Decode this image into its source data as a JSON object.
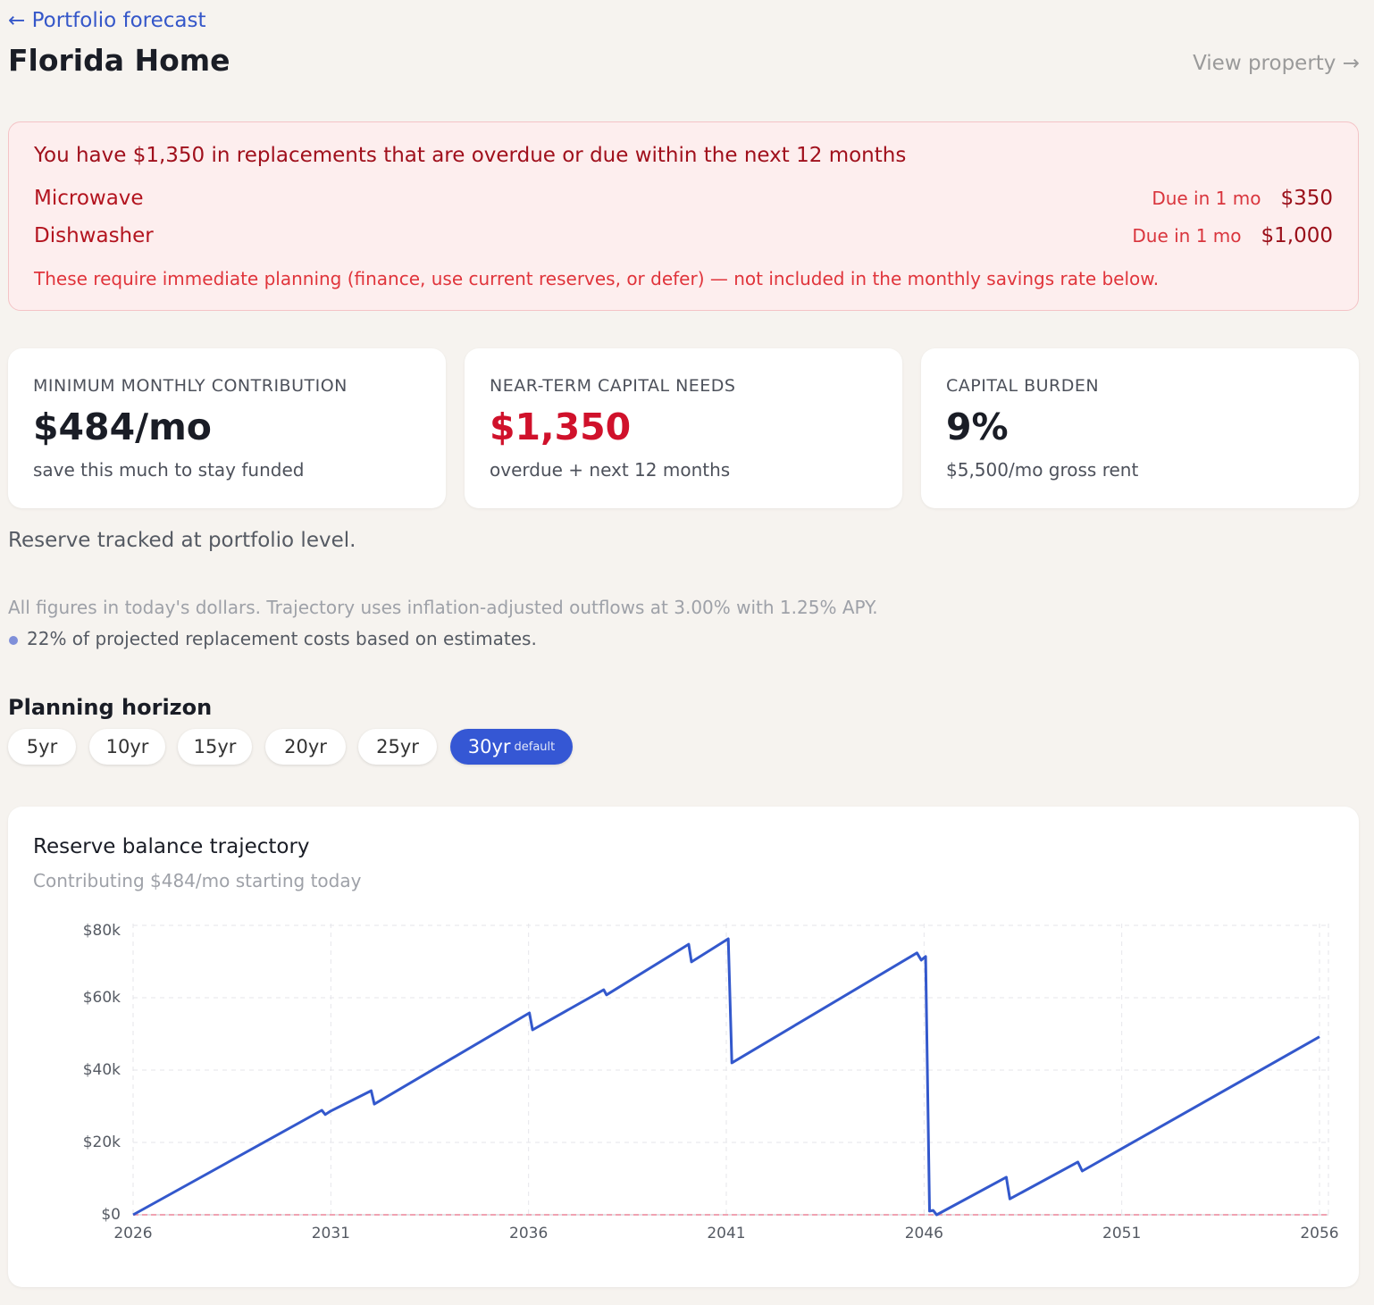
{
  "header": {
    "back_link": "← Portfolio forecast",
    "title": "Florida Home",
    "view_link": "View property →"
  },
  "alert": {
    "title": "You have $1,350 in replacements that are overdue or due within the next 12 months",
    "items": [
      {
        "name": "Microwave",
        "due": "Due in 1 mo",
        "amount": "$350"
      },
      {
        "name": "Dishwasher",
        "due": "Due in 1 mo",
        "amount": "$1,000"
      }
    ],
    "note": "These require immediate planning (finance, use current reserves, or defer) — not included in the monthly savings rate below."
  },
  "cards": [
    {
      "label": "MINIMUM MONTHLY CONTRIBUTION",
      "value": "$484/mo",
      "sub": "save this much to stay funded",
      "color": "#1a1d26"
    },
    {
      "label": "NEAR-TERM CAPITAL NEEDS",
      "value": "$1,350",
      "sub": "overdue + next 12 months",
      "color": "#d0112b"
    },
    {
      "label": "CAPITAL BURDEN",
      "value": "9%",
      "sub": "$5,500/mo gross rent",
      "color": "#1a1d26"
    }
  ],
  "reserve_note": "Reserve tracked at portfolio level.",
  "assumptions": "All figures in today's dollars. Trajectory uses inflation-adjusted outflows at 3.00% with 1.25% APY.",
  "estimate_note": "22% of projected replacement costs based on estimates.",
  "horizon": {
    "label": "Planning horizon",
    "options": [
      "5yr",
      "10yr",
      "15yr",
      "20yr",
      "25yr",
      "30yr"
    ],
    "selected": 5,
    "default_tag": "default"
  },
  "chart_data": {
    "type": "line",
    "title": "Reserve balance trajectory",
    "subtitle": "Contributing $484/mo starting today",
    "x": [
      2026,
      2030.77,
      2030.86,
      2031.0,
      2032.02,
      2032.1,
      2036.02,
      2036.1,
      2037.9,
      2037.97,
      2040.05,
      2040.12,
      2041.05,
      2041.14,
      2045.82,
      2045.93,
      2046.04,
      2046.14,
      2046.23,
      2046.32,
      2048.08,
      2048.17,
      2049.89,
      2050.0,
      2056.0
    ],
    "values": [
      0,
      28900,
      27700,
      28700,
      34300,
      30600,
      55800,
      51100,
      62200,
      60800,
      74800,
      69900,
      76300,
      42000,
      72400,
      70400,
      71400,
      1000,
      1200,
      0,
      10400,
      4400,
      14600,
      12100,
      49200
    ],
    "color": "#3358cc",
    "xlim": [
      2026,
      2056
    ],
    "xticks": [
      2026,
      2031,
      2036,
      2041,
      2046,
      2051,
      2056
    ],
    "ylim": [
      0,
      80000
    ],
    "yticks": [
      {
        "value": 0,
        "label": "$0"
      },
      {
        "value": 20000,
        "label": "$20k"
      },
      {
        "value": 40000,
        "label": "$40k"
      },
      {
        "value": 60000,
        "label": "$60k"
      },
      {
        "value": 80000,
        "label": "$80k"
      }
    ],
    "grid": true,
    "threshold": 0,
    "threshold_color": "#f0a3b2"
  }
}
